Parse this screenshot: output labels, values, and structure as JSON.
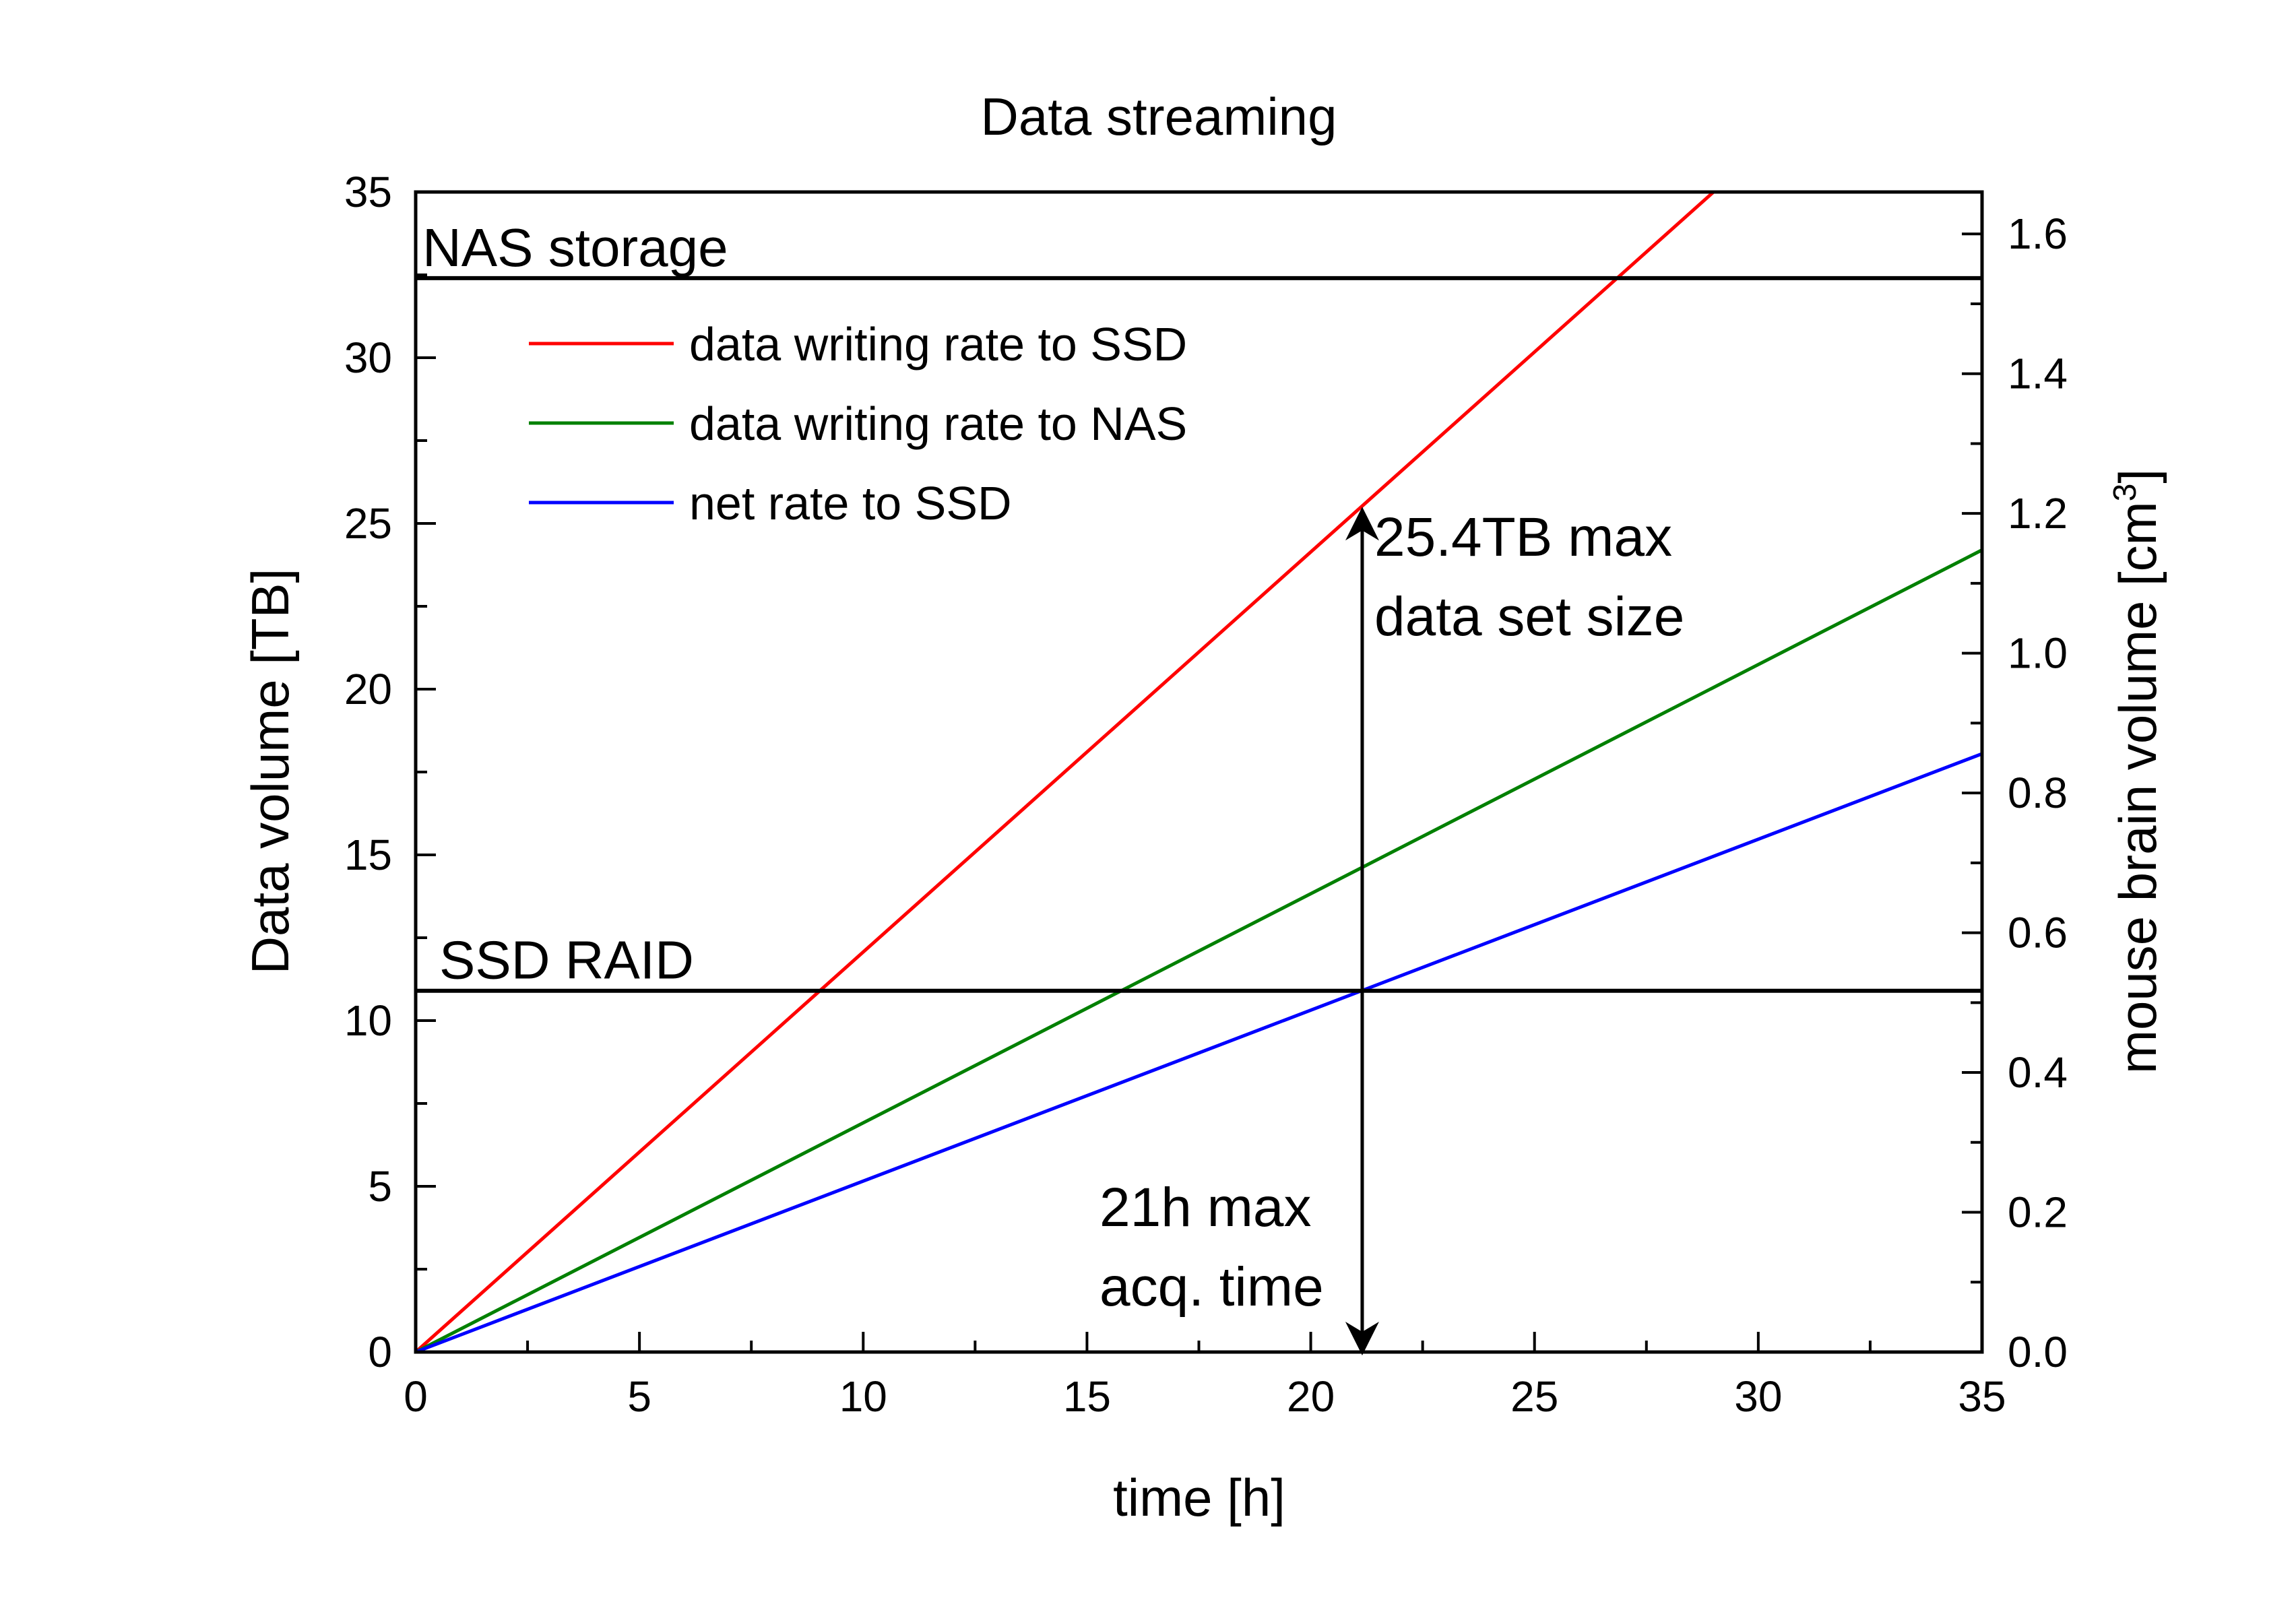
{
  "chart_data": {
    "type": "line",
    "title": "Data streaming",
    "xlabel": "time [h]",
    "ylabel": "Data volume [TB]",
    "y2label": "mouse brain volume [cm",
    "y2label_superscript": "3",
    "y2label_suffix": "]",
    "xlim": [
      0,
      35
    ],
    "ylim": [
      0,
      35
    ],
    "y2lim": [
      0,
      1.66
    ],
    "x_ticks": [
      "0",
      "5",
      "10",
      "15",
      "20",
      "25",
      "30",
      "35"
    ],
    "y_ticks": [
      "0",
      "5",
      "10",
      "15",
      "20",
      "25",
      "30",
      "35"
    ],
    "y2_ticks": [
      "0.0",
      "0.2",
      "0.4",
      "0.6",
      "0.8",
      "1.0",
      "1.2",
      "1.4",
      "1.6"
    ],
    "grid": false,
    "legend_position": "top-left",
    "series": [
      {
        "name": "data writing rate to SSD",
        "color": "#ff0000",
        "x": [
          0,
          29
        ],
        "y": [
          0,
          35
        ]
      },
      {
        "name": "data writing rate to NAS",
        "color": "#008000",
        "x": [
          0,
          35
        ],
        "y": [
          0,
          24.2
        ]
      },
      {
        "name": "net rate to SSD",
        "color": "#0000ff",
        "x": [
          0,
          35
        ],
        "y": [
          0,
          18.05
        ]
      }
    ],
    "reference_lines": [
      {
        "label": "NAS storage",
        "y": 32.4,
        "color": "#000000"
      },
      {
        "label": "SSD RAID",
        "y": 10.9,
        "color": "#000000"
      }
    ],
    "annotations": {
      "vertical_arrow_x": 21.15,
      "vertical_arrow_y": [
        0,
        25.4
      ],
      "dataset_size_lines": [
        "25.4TB max",
        "data set size"
      ],
      "acq_time_lines": [
        "21h max",
        "acq. time"
      ]
    }
  }
}
